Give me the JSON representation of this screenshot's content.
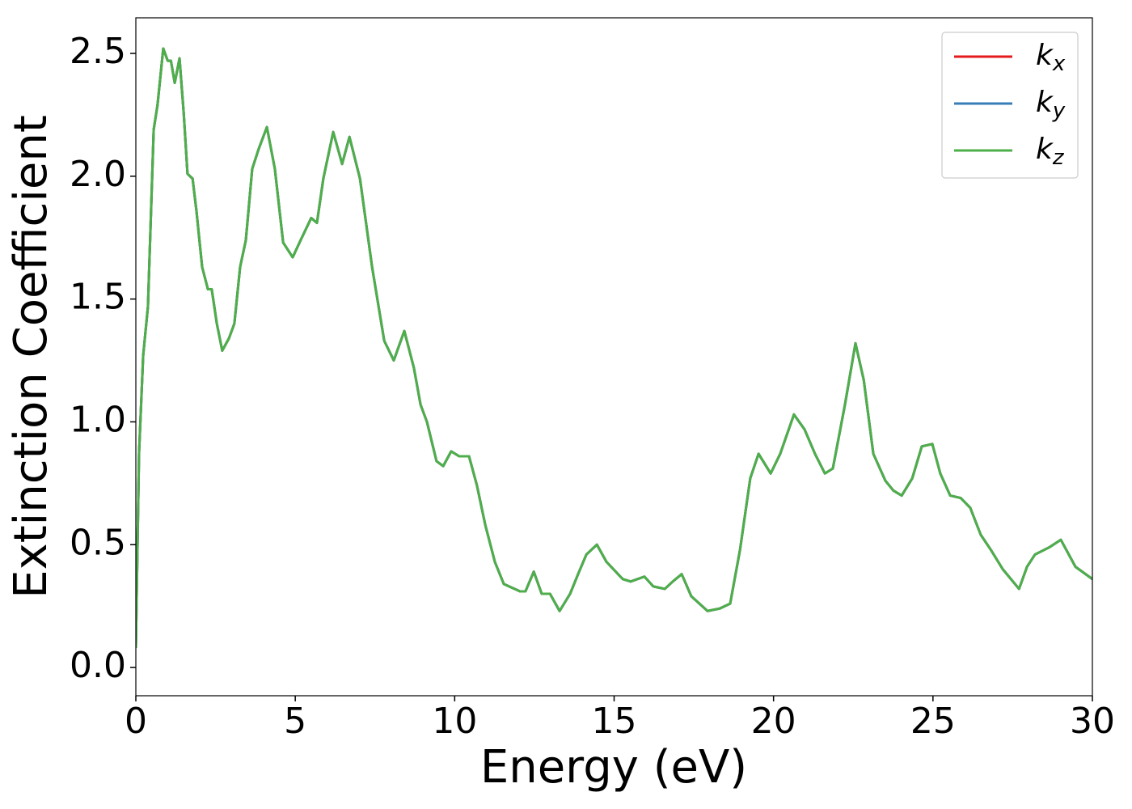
{
  "chart_data": {
    "type": "line",
    "xlabel": "Energy (eV)",
    "ylabel": "Extinction Coefficient",
    "x": [
      0,
      0.1,
      0.23,
      0.38,
      0.56,
      0.68,
      0.86,
      1.0,
      1.1,
      1.22,
      1.37,
      1.5,
      1.62,
      1.78,
      1.9,
      2.08,
      2.26,
      2.38,
      2.54,
      2.71,
      2.92,
      3.09,
      3.27,
      3.45,
      3.65,
      3.85,
      4.11,
      4.36,
      4.62,
      4.92,
      5.17,
      5.5,
      5.68,
      5.88,
      6.19,
      6.47,
      6.7,
      7.03,
      7.41,
      7.79,
      8.09,
      8.42,
      8.72,
      8.93,
      9.13,
      9.43,
      9.64,
      9.89,
      10.14,
      10.45,
      10.7,
      10.96,
      11.26,
      11.54,
      12.05,
      12.22,
      12.48,
      12.73,
      12.99,
      13.29,
      13.62,
      13.87,
      14.13,
      14.46,
      14.76,
      15.27,
      15.52,
      15.95,
      16.23,
      16.59,
      16.84,
      17.12,
      17.42,
      17.93,
      18.31,
      18.64,
      18.95,
      19.27,
      19.53,
      19.91,
      20.21,
      20.64,
      20.97,
      21.3,
      21.61,
      21.86,
      22.24,
      22.57,
      22.83,
      23.13,
      23.51,
      23.76,
      24.02,
      24.35,
      24.65,
      24.98,
      25.23,
      25.54,
      25.87,
      26.17,
      26.5,
      26.81,
      27.19,
      27.7,
      27.95,
      28.2,
      28.66,
      29.01,
      29.47,
      30
    ],
    "series": [
      {
        "name": "kx",
        "color": "#e41a1c",
        "values": [
          0.08,
          0.87,
          1.27,
          1.47,
          2.19,
          2.29,
          2.52,
          2.47,
          2.47,
          2.38,
          2.48,
          2.26,
          2.01,
          1.99,
          1.86,
          1.63,
          1.54,
          1.54,
          1.4,
          1.29,
          1.34,
          1.4,
          1.63,
          1.74,
          2.03,
          2.11,
          2.2,
          2.03,
          1.73,
          1.67,
          1.74,
          1.83,
          1.81,
          1.99,
          2.18,
          2.05,
          2.16,
          1.99,
          1.63,
          1.33,
          1.25,
          1.37,
          1.22,
          1.07,
          1.0,
          0.84,
          0.82,
          0.88,
          0.86,
          0.86,
          0.74,
          0.58,
          0.43,
          0.34,
          0.31,
          0.31,
          0.39,
          0.3,
          0.3,
          0.23,
          0.3,
          0.38,
          0.46,
          0.5,
          0.43,
          0.36,
          0.35,
          0.37,
          0.33,
          0.32,
          0.35,
          0.38,
          0.29,
          0.23,
          0.24,
          0.26,
          0.48,
          0.77,
          0.87,
          0.79,
          0.87,
          1.03,
          0.97,
          0.87,
          0.79,
          0.81,
          1.07,
          1.32,
          1.17,
          0.87,
          0.76,
          0.72,
          0.7,
          0.77,
          0.9,
          0.91,
          0.79,
          0.7,
          0.69,
          0.65,
          0.54,
          0.48,
          0.4,
          0.32,
          0.41,
          0.46,
          0.49,
          0.52,
          0.41,
          0.36
        ]
      },
      {
        "name": "ky",
        "color": "#377eb8",
        "values": [
          0.08,
          0.87,
          1.27,
          1.47,
          2.19,
          2.29,
          2.52,
          2.47,
          2.47,
          2.38,
          2.48,
          2.26,
          2.01,
          1.99,
          1.86,
          1.63,
          1.54,
          1.54,
          1.4,
          1.29,
          1.34,
          1.4,
          1.63,
          1.74,
          2.03,
          2.11,
          2.2,
          2.03,
          1.73,
          1.67,
          1.74,
          1.83,
          1.81,
          1.99,
          2.18,
          2.05,
          2.16,
          1.99,
          1.63,
          1.33,
          1.25,
          1.37,
          1.22,
          1.07,
          1.0,
          0.84,
          0.82,
          0.88,
          0.86,
          0.86,
          0.74,
          0.58,
          0.43,
          0.34,
          0.31,
          0.31,
          0.39,
          0.3,
          0.3,
          0.23,
          0.3,
          0.38,
          0.46,
          0.5,
          0.43,
          0.36,
          0.35,
          0.37,
          0.33,
          0.32,
          0.35,
          0.38,
          0.29,
          0.23,
          0.24,
          0.26,
          0.48,
          0.77,
          0.87,
          0.79,
          0.87,
          1.03,
          0.97,
          0.87,
          0.79,
          0.81,
          1.07,
          1.32,
          1.17,
          0.87,
          0.76,
          0.72,
          0.7,
          0.77,
          0.9,
          0.91,
          0.79,
          0.7,
          0.69,
          0.65,
          0.54,
          0.48,
          0.4,
          0.32,
          0.41,
          0.46,
          0.49,
          0.52,
          0.41,
          0.36
        ]
      },
      {
        "name": "kz",
        "color": "#4daf4a",
        "values": [
          0.08,
          0.87,
          1.27,
          1.47,
          2.19,
          2.29,
          2.52,
          2.47,
          2.47,
          2.38,
          2.48,
          2.26,
          2.01,
          1.99,
          1.86,
          1.63,
          1.54,
          1.54,
          1.4,
          1.29,
          1.34,
          1.4,
          1.63,
          1.74,
          2.03,
          2.11,
          2.2,
          2.03,
          1.73,
          1.67,
          1.74,
          1.83,
          1.81,
          1.99,
          2.18,
          2.05,
          2.16,
          1.99,
          1.63,
          1.33,
          1.25,
          1.37,
          1.22,
          1.07,
          1.0,
          0.84,
          0.82,
          0.88,
          0.86,
          0.86,
          0.74,
          0.58,
          0.43,
          0.34,
          0.31,
          0.31,
          0.39,
          0.3,
          0.3,
          0.23,
          0.3,
          0.38,
          0.46,
          0.5,
          0.43,
          0.36,
          0.35,
          0.37,
          0.33,
          0.32,
          0.35,
          0.38,
          0.29,
          0.23,
          0.24,
          0.26,
          0.48,
          0.77,
          0.87,
          0.79,
          0.87,
          1.03,
          0.97,
          0.87,
          0.79,
          0.81,
          1.07,
          1.32,
          1.17,
          0.87,
          0.76,
          0.72,
          0.7,
          0.77,
          0.9,
          0.91,
          0.79,
          0.7,
          0.69,
          0.65,
          0.54,
          0.48,
          0.4,
          0.32,
          0.41,
          0.46,
          0.49,
          0.52,
          0.41,
          0.36
        ]
      }
    ],
    "xlim": [
      0,
      30
    ],
    "xticks": [
      0,
      5,
      10,
      15,
      20,
      25,
      30
    ],
    "ylim": [
      -0.115,
      2.645
    ],
    "yticks": [
      {
        "value": 0,
        "label": "0.0"
      },
      0.5,
      {
        "value": 1,
        "label": "1.0"
      },
      1.5,
      {
        "value": 2,
        "label": "2.0"
      },
      2.5
    ],
    "grid": false,
    "legend": "upper right"
  }
}
